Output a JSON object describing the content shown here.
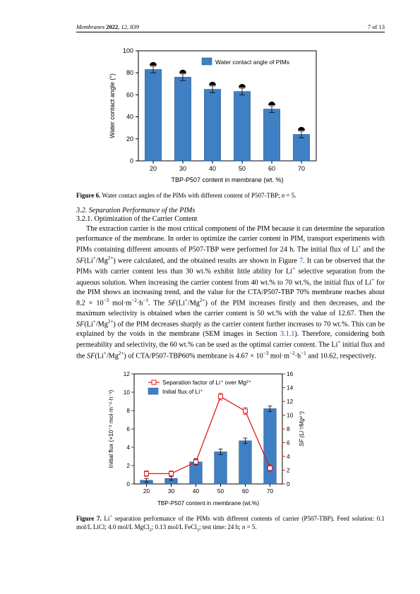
{
  "header": {
    "journal": "Membranes",
    "year": "2022",
    "vol_issue": "12, 839",
    "pager": "7 of 13"
  },
  "figure6": {
    "caption_label": "Figure 6.",
    "caption_text": "Water contact angles of the PIMs with different content of P507-TBP; n = 5.",
    "type": "bar",
    "categories": [
      "20",
      "30",
      "40",
      "50",
      "60",
      "70"
    ],
    "values": [
      83,
      76,
      65,
      63,
      47,
      24
    ],
    "errors": [
      3,
      3,
      3,
      3,
      3,
      3
    ],
    "bar_color": "#3f80c4",
    "bar_outline": "#1b4d85",
    "marker_fill": "#000000",
    "legend_swatch": "#3f80c4",
    "legend_label": "Water contact angle of PIMs",
    "ylabel": "Water contact angle (°)",
    "xlabel": "TBP-P507 content in membrane (wt. %)",
    "ylim": [
      0,
      100
    ],
    "ytick_step": 20,
    "background_color": "#ffffff",
    "plot_border": "#000000"
  },
  "section32": "3.2. Separation Performance of the PIMs",
  "section321": "3.2.1. Optimization of the Carrier Content",
  "body_text": "The extraction carrier is the most critical component of the PIM because it can determine the separation performance of the membrane. In order to optimize the carrier content in PIM, transport experiments with PIMs containing different amounts of P507-TBP were performed for 24 h. The initial flux of Li⁺ and the SF(Li⁺/Mg²⁺) were calculated, and the obtained results are shown in Figure 7. It can be observed that the PIMs with carrier content less than 30 wt.% exhibit little ability for Li⁺ selective separation from the aqueous solution. When increasing the carrier content from 40 wt.% to 70 wt.%, the initial flux of Li⁺ for the PIM shows an increasing trend, and the value for the CTA/P507-TBP 70% membrane reaches about 8.2 × 10⁻³ mol·m⁻²·h⁻¹. The SF(Li⁺/Mg²⁺) of the PIM increases firstly and then decreases, and the maximum selectivity is obtained when the carrier content is 50 wt.% with the value of 12.67. Then the SF(Li⁺/Mg²⁺) of the PIM decreases sharply as the carrier content further increases to 70 wt.%. This can be explained by the voids in the membrane (SEM images in Section 3.1.1). Therefore, considering both permeability and selectivity, the 60 wt.% can be used as the optimal carrier content. The Li⁺ initial flux and the SF(Li⁺/Mg²⁺) of CTA/P507-TBP60% membrane is 4.67 × 10⁻³ mol·m⁻²·h⁻¹ and 10.62, respectively.",
  "figure7": {
    "caption_label": "Figure 7.",
    "caption_text": "Li⁺ separation performance of the PIMs with different contents of carrier (P507-TBP). Feed solution: 0.1 mol/L LiCl; 4.0 mol/L MgCl₂; 0.13 mol/L FeCl₃; test time: 24 h; n = 5.",
    "type": "combo-bar-line",
    "categories": [
      "20",
      "30",
      "40",
      "50",
      "60",
      "70"
    ],
    "bar_values": [
      0.4,
      0.6,
      2.4,
      3.5,
      4.7,
      8.2
    ],
    "bar_errors": [
      0.2,
      0.2,
      0.3,
      0.3,
      0.3,
      0.3
    ],
    "line_values": [
      1.5,
      1.5,
      3.2,
      12.7,
      10.6,
      2.3
    ],
    "line_errors": [
      0.4,
      0.4,
      0.5,
      0.5,
      0.5,
      0.5
    ],
    "bar_color": "#3f80c4",
    "bar_outline": "#1b4d85",
    "line_color": "#e01919",
    "line_marker": "square",
    "line_marker_fill": "#ffffff",
    "line_marker_stroke": "#e01919",
    "ylabel_left": "Initial flux (×10⁻³ mol·m⁻²·h⁻¹)",
    "ylabel_right": "SF (Li⁺/Mg²⁺)",
    "xlabel": "TBP-P507 content in membrane (wt.%)",
    "ylim_left": [
      0,
      12
    ],
    "ytick_left_step": 2,
    "ylim_right": [
      0,
      16
    ],
    "ytick_right_step": 2,
    "legend_line": "Separation factor of Li⁺ over Mg²⁺",
    "legend_bar": "Initial flux of Li⁺",
    "background_color": "#ffffff",
    "plot_border": "#000000"
  }
}
